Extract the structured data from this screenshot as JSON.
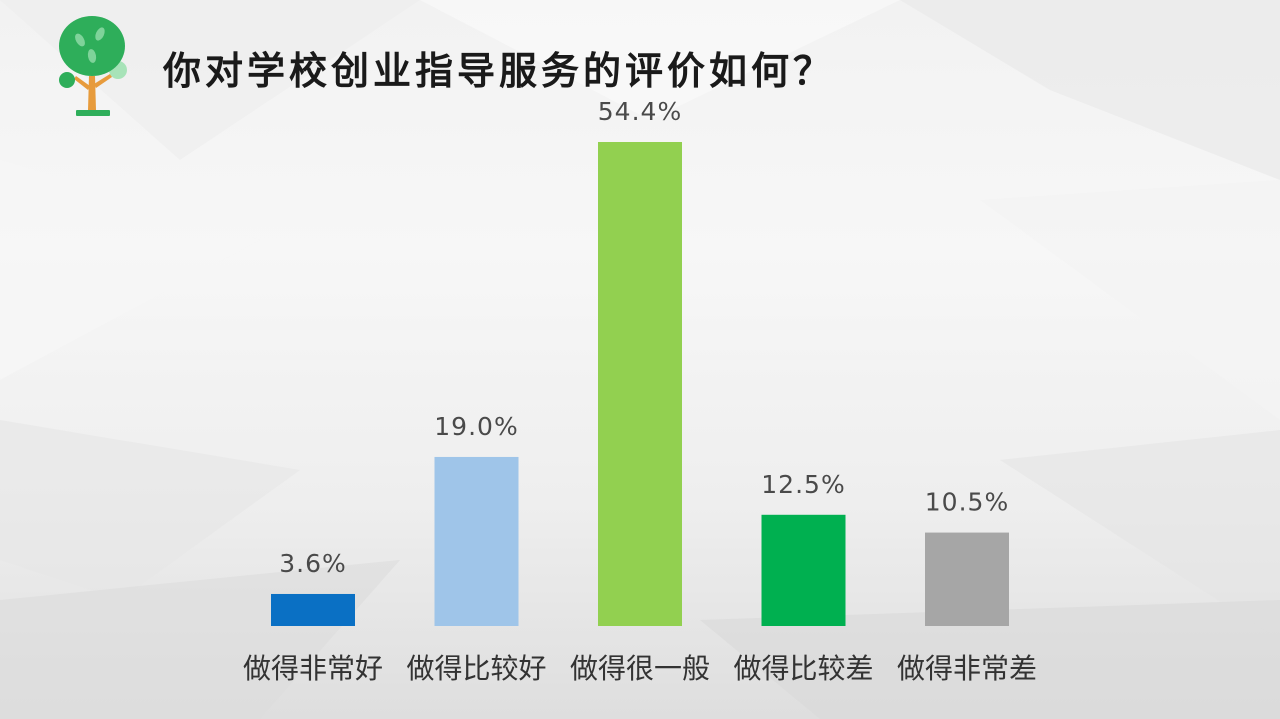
{
  "title": "你对学校创业指导服务的评价如何？",
  "icons": {
    "logo": "tree-icon"
  },
  "chart_data": {
    "type": "bar",
    "title": "你对学校创业指导服务的评价如何？",
    "categories": [
      "做得非常好",
      "做得比较好",
      "做得很一般",
      "做得比较差",
      "做得非常差"
    ],
    "values": [
      3.6,
      19.0,
      54.4,
      12.5,
      10.5
    ],
    "value_labels": [
      "3.6%",
      "19.0%",
      "54.4%",
      "12.5%",
      "10.5%"
    ],
    "colors": [
      "#0a70c4",
      "#9fc5e9",
      "#92d050",
      "#00b050",
      "#a6a6a6"
    ],
    "unit": "%",
    "ylim": [
      0,
      60
    ],
    "grid": false,
    "legend": "none"
  }
}
